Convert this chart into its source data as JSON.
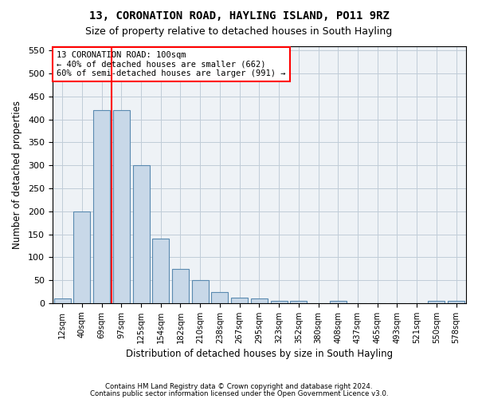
{
  "title": "13, CORONATION ROAD, HAYLING ISLAND, PO11 9RZ",
  "subtitle": "Size of property relative to detached houses in South Hayling",
  "xlabel": "Distribution of detached houses by size in South Hayling",
  "ylabel": "Number of detached properties",
  "bar_labels": [
    "12sqm",
    "40sqm",
    "69sqm",
    "97sqm",
    "125sqm",
    "154sqm",
    "182sqm",
    "210sqm",
    "238sqm",
    "267sqm",
    "295sqm",
    "323sqm",
    "352sqm",
    "380sqm",
    "408sqm",
    "437sqm",
    "465sqm",
    "493sqm",
    "521sqm",
    "550sqm",
    "578sqm"
  ],
  "bar_heights": [
    10,
    200,
    420,
    420,
    300,
    140,
    75,
    50,
    25,
    12,
    10,
    5,
    5,
    0,
    5,
    0,
    0,
    0,
    0,
    5,
    5
  ],
  "bar_color": "#c8d8e8",
  "bar_edge_color": "#5a8ab0",
  "red_line_x": 2.5,
  "ylim_max": 560,
  "yticks": [
    0,
    50,
    100,
    150,
    200,
    250,
    300,
    350,
    400,
    450,
    500,
    550
  ],
  "annotation_line1": "13 CORONATION ROAD: 100sqm",
  "annotation_line2": "← 40% of detached houses are smaller (662)",
  "annotation_line3": "60% of semi-detached houses are larger (991) →",
  "footer_line1": "Contains HM Land Registry data © Crown copyright and database right 2024.",
  "footer_line2": "Contains public sector information licensed under the Open Government Licence v3.0.",
  "bg_color": "#eef2f6",
  "grid_color": "#c0ccd8"
}
